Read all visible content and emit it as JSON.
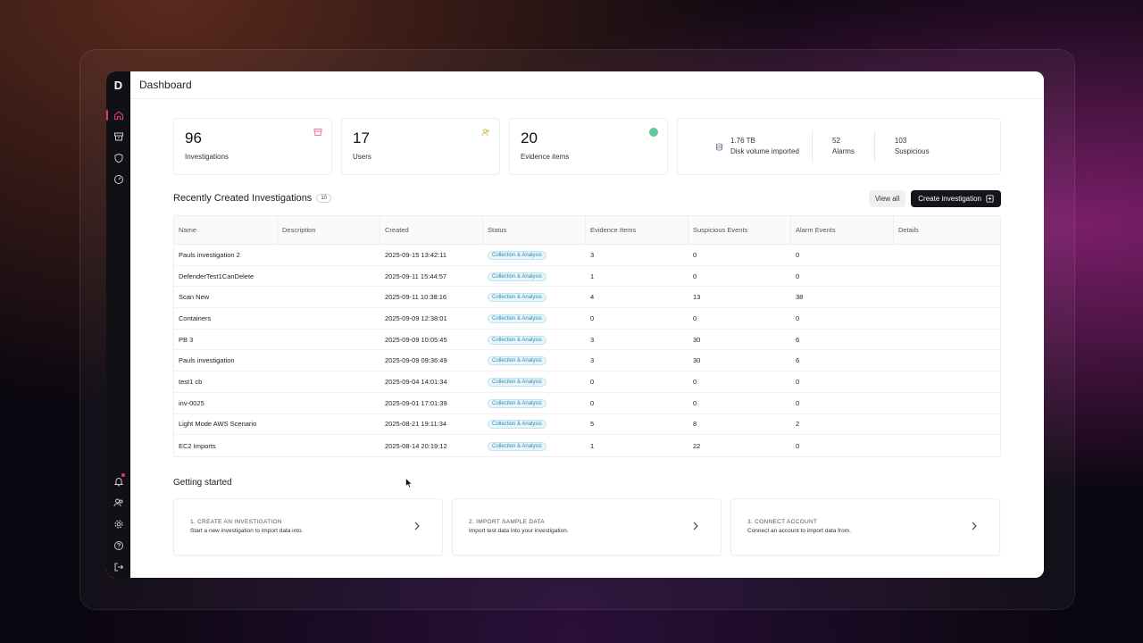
{
  "sidebar": {
    "logo": "D"
  },
  "topbar": {
    "title": "Dashboard"
  },
  "stats": [
    {
      "value": "96",
      "label": "Investigations"
    },
    {
      "value": "17",
      "label": "Users"
    },
    {
      "value": "20",
      "label": "Evidence items"
    }
  ],
  "summary": {
    "disk_value": "1.76 TB",
    "disk_label": "Disk volume imported",
    "alarms_value": "52",
    "alarms_label": "Alarms",
    "suspicious_value": "103",
    "suspicious_label": "Suspicious"
  },
  "investigations": {
    "title": "Recently Created Investigations",
    "count": "10",
    "view_all": "View all",
    "create": "Create investigation",
    "columns": [
      "Name",
      "Description",
      "Created",
      "Status",
      "Evidence Items",
      "Suspicious Events",
      "Alarm Events",
      "Details"
    ],
    "rows": [
      {
        "name": "Pauls investigation 2",
        "description": "",
        "created": "2025-09-15 13:42:11",
        "status": "Collection & Analysis",
        "evidence": "3",
        "suspicious": "0",
        "alarms": "0"
      },
      {
        "name": "DefenderTest1CanDelete",
        "description": "",
        "created": "2025-09-11 15:44:57",
        "status": "Collection & Analysis",
        "evidence": "1",
        "suspicious": "0",
        "alarms": "0"
      },
      {
        "name": "Scan New",
        "description": "",
        "created": "2025-09-11 10:38:16",
        "status": "Collection & Analysis",
        "evidence": "4",
        "suspicious": "13",
        "alarms": "38"
      },
      {
        "name": "Containers",
        "description": "",
        "created": "2025-09-09 12:38:01",
        "status": "Collection & Analysis",
        "evidence": "0",
        "suspicious": "0",
        "alarms": "0"
      },
      {
        "name": "PB 3",
        "description": "",
        "created": "2025-09-09 10:05:45",
        "status": "Collection & Analysis",
        "evidence": "3",
        "suspicious": "30",
        "alarms": "6"
      },
      {
        "name": "Pauls investigation",
        "description": "",
        "created": "2025-09-09 09:36:49",
        "status": "Collection & Analysis",
        "evidence": "3",
        "suspicious": "30",
        "alarms": "6"
      },
      {
        "name": "test1 cb",
        "description": "",
        "created": "2025-09-04 14:01:34",
        "status": "Collection & Analysis",
        "evidence": "0",
        "suspicious": "0",
        "alarms": "0"
      },
      {
        "name": "inv-0025",
        "description": "",
        "created": "2025-09-01 17:01:39",
        "status": "Collection & Analysis",
        "evidence": "0",
        "suspicious": "0",
        "alarms": "0"
      },
      {
        "name": "Light Mode AWS Scenario",
        "description": "",
        "created": "2025-08-21 19:11:34",
        "status": "Collection & Analysis",
        "evidence": "5",
        "suspicious": "8",
        "alarms": "2"
      },
      {
        "name": "EC2 Imports",
        "description": "",
        "created": "2025-08-14 20:19:12",
        "status": "Collection & Analysis",
        "evidence": "1",
        "suspicious": "22",
        "alarms": "0"
      }
    ]
  },
  "getting_started": {
    "title": "Getting started",
    "cards": [
      {
        "title": "1. CREATE AN INVESTIGATION",
        "desc": "Start a new investigation to import data into."
      },
      {
        "title": "2. IMPORT SAMPLE DATA",
        "desc": "Import test data into your investigation."
      },
      {
        "title": "3. CONNECT ACCOUNT",
        "desc": "Connect an account to import data from."
      }
    ]
  },
  "colors": {
    "accent": "#e33a6d",
    "sidebar": "#111115",
    "pill_text": "#2a8bb0",
    "online": "#5fc999"
  }
}
